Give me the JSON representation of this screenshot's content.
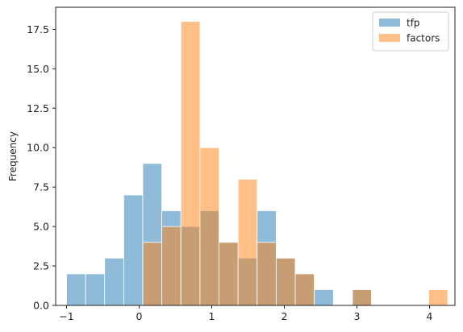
{
  "chart_data": {
    "type": "bar",
    "subtype": "overlaid-histogram",
    "title": "",
    "xlabel": "",
    "ylabel": "Frequency",
    "xlim": [
      -1.15,
      4.35
    ],
    "ylim": [
      0,
      18.9
    ],
    "xticks": [
      -1,
      0,
      1,
      2,
      3,
      4
    ],
    "xtick_labels": [
      "−1",
      "0",
      "1",
      "2",
      "3",
      "4"
    ],
    "yticks": [
      0,
      2.5,
      5,
      7.5,
      10,
      12.5,
      15,
      17.5
    ],
    "ytick_labels": [
      "0.0",
      "2.5",
      "5.0",
      "7.5",
      "10.0",
      "12.5",
      "15.0",
      "17.5"
    ],
    "grid": false,
    "legend_position": "top-right",
    "bin_edges": [
      -1.0,
      -0.7375,
      -0.475,
      -0.2125,
      0.05,
      0.3125,
      0.575,
      0.8375,
      1.1,
      1.3625,
      1.625,
      1.8875,
      2.15,
      2.4125,
      2.675,
      2.9375,
      3.2,
      3.4625,
      3.725,
      3.9875,
      4.25
    ],
    "series": [
      {
        "name": "tfp",
        "color": "#1f77b4",
        "opacity": 0.5,
        "counts": [
          2,
          2,
          3,
          7,
          9,
          6,
          5,
          6,
          4,
          3,
          6,
          3,
          2,
          1,
          0,
          1,
          0,
          0,
          0,
          0
        ]
      },
      {
        "name": "factors",
        "color": "#ff7f0e",
        "opacity": 0.5,
        "counts": [
          0,
          0,
          0,
          0,
          4,
          5,
          18,
          10,
          4,
          8,
          4,
          3,
          2,
          0,
          0,
          1,
          0,
          0,
          0,
          1
        ]
      }
    ]
  }
}
